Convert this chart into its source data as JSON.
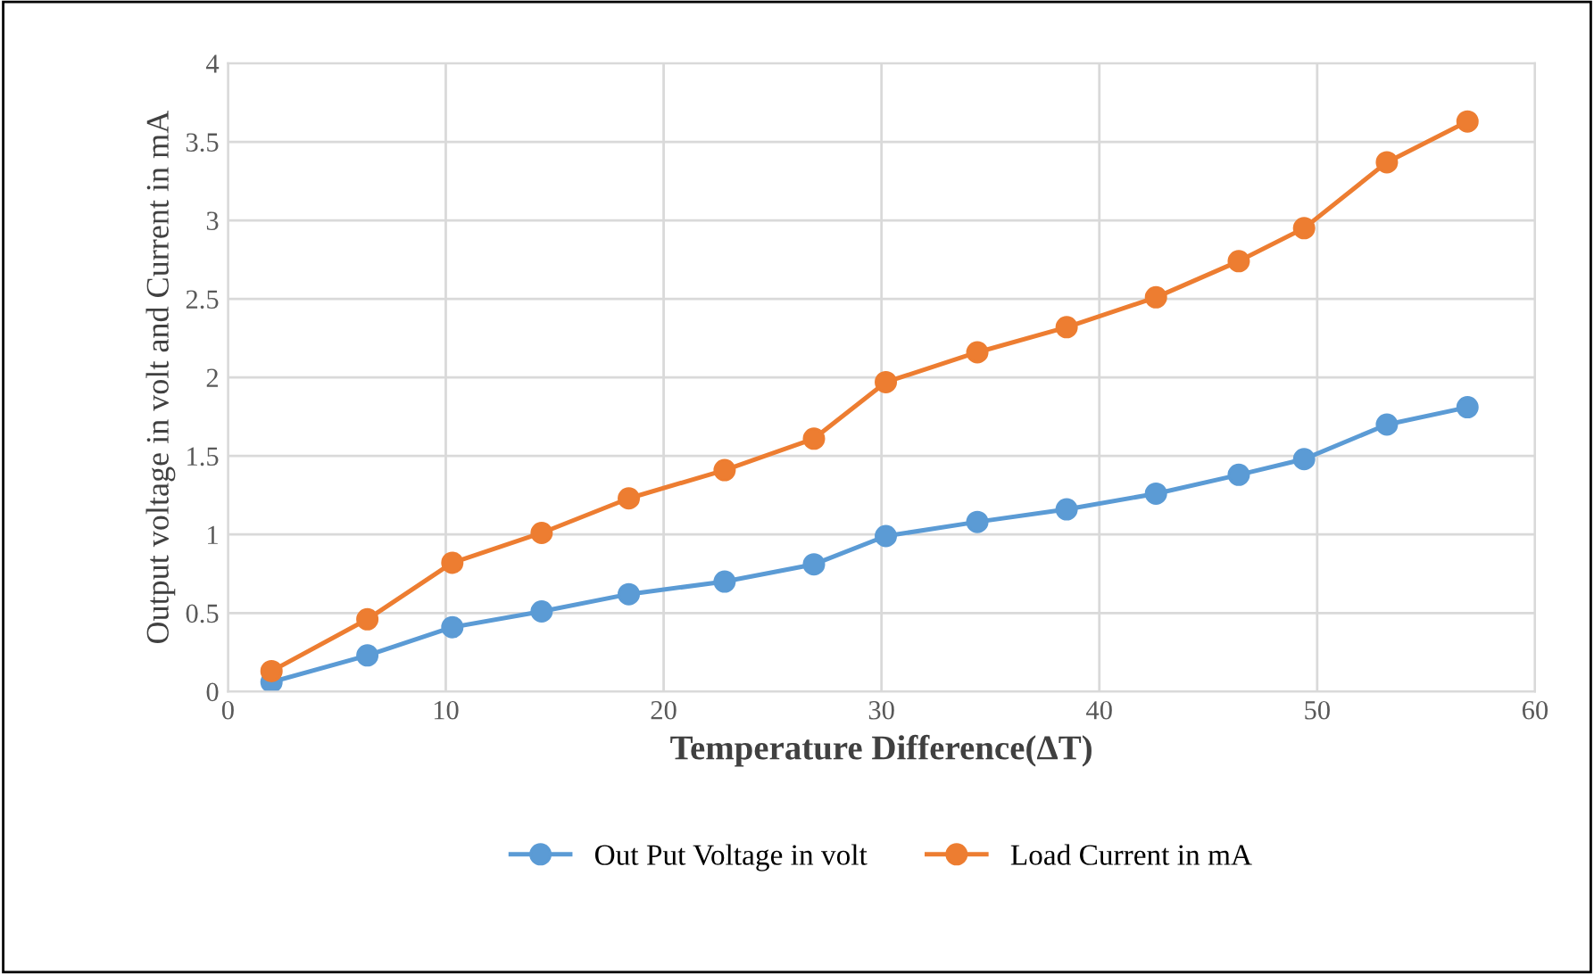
{
  "chart_data": {
    "type": "line",
    "xlabel": "Temperature Difference(ΔT)",
    "ylabel": "Output voltage in volt and Current in mA",
    "x": [
      2.0,
      6.4,
      10.3,
      14.4,
      18.4,
      22.8,
      26.9,
      30.2,
      34.4,
      38.5,
      42.6,
      46.4,
      49.4,
      53.2,
      56.9
    ],
    "series": [
      {
        "name": "Out Put Voltage in volt",
        "color": "#5b9bd5",
        "values": [
          0.06,
          0.23,
          0.41,
          0.51,
          0.62,
          0.7,
          0.81,
          0.99,
          1.08,
          1.16,
          1.26,
          1.38,
          1.48,
          1.7,
          1.81
        ]
      },
      {
        "name": "Load Current in mA",
        "color": "#ed7d31",
        "values": [
          0.13,
          0.46,
          0.82,
          1.01,
          1.23,
          1.41,
          1.61,
          1.97,
          2.16,
          2.32,
          2.51,
          2.74,
          2.95,
          3.37,
          3.63
        ]
      }
    ],
    "xlim": [
      0,
      60
    ],
    "xticks": [
      0,
      10,
      20,
      30,
      40,
      50,
      60
    ],
    "ylim": [
      0,
      4
    ],
    "yticks": [
      0,
      0.5,
      1,
      1.5,
      2,
      2.5,
      3,
      3.5,
      4
    ],
    "grid": true,
    "legend": "bottom",
    "marker": "circle",
    "line_style": "solid"
  }
}
